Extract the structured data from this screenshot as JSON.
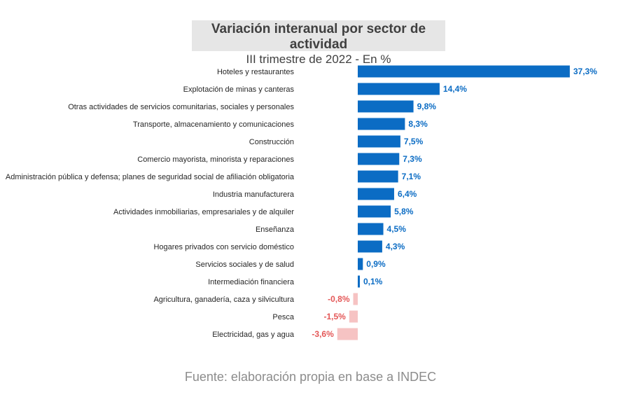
{
  "title": "Variación interanual por sector de actividad",
  "subtitle": "III trimestre de 2022 - En %",
  "source": "Fuente: elaboración propia en base a INDEC",
  "colors": {
    "positive": "#0b6cc4",
    "negative": "#f6c3c3",
    "positive_label": "#0b6cc4",
    "negative_label": "#e45757",
    "category": "#262626"
  },
  "chart_data": {
    "type": "bar",
    "orientation": "horizontal",
    "categories": [
      "Hoteles y restaurantes",
      "Explotación de minas y canteras",
      "Otras actividades de servicios comunitarias, sociales y personales",
      "Transporte, almacenamiento y comunicaciones",
      "Construcción",
      "Comercio mayorista, minorista y reparaciones",
      "Administración pública y defensa; planes de seguridad social de afiliación obligatoria",
      "Industria manufacturera",
      "Actividades inmobiliarias, empresariales y de alquiler",
      "Enseñanza",
      "Hogares privados con servicio doméstico",
      "Servicios sociales y de salud",
      "Intermediación financiera",
      "Agricultura, ganadería, caza y silvicultura",
      "Pesca",
      "Electricidad, gas y agua"
    ],
    "values": [
      37.3,
      14.4,
      9.8,
      8.3,
      7.5,
      7.3,
      7.1,
      6.4,
      5.8,
      4.5,
      4.3,
      0.9,
      0.1,
      -0.8,
      -1.5,
      -3.6
    ],
    "labels": [
      "37,3%",
      "14,4%",
      "9,8%",
      "8,3%",
      "7,5%",
      "7,3%",
      "7,1%",
      "6,4%",
      "5,8%",
      "4,5%",
      "4,3%",
      "0,9%",
      "0,1%",
      "-0,8%",
      "-1,5%",
      "-3,6%"
    ],
    "xlim": [
      -3.6,
      37.3
    ],
    "grid": false,
    "legend": "none"
  }
}
